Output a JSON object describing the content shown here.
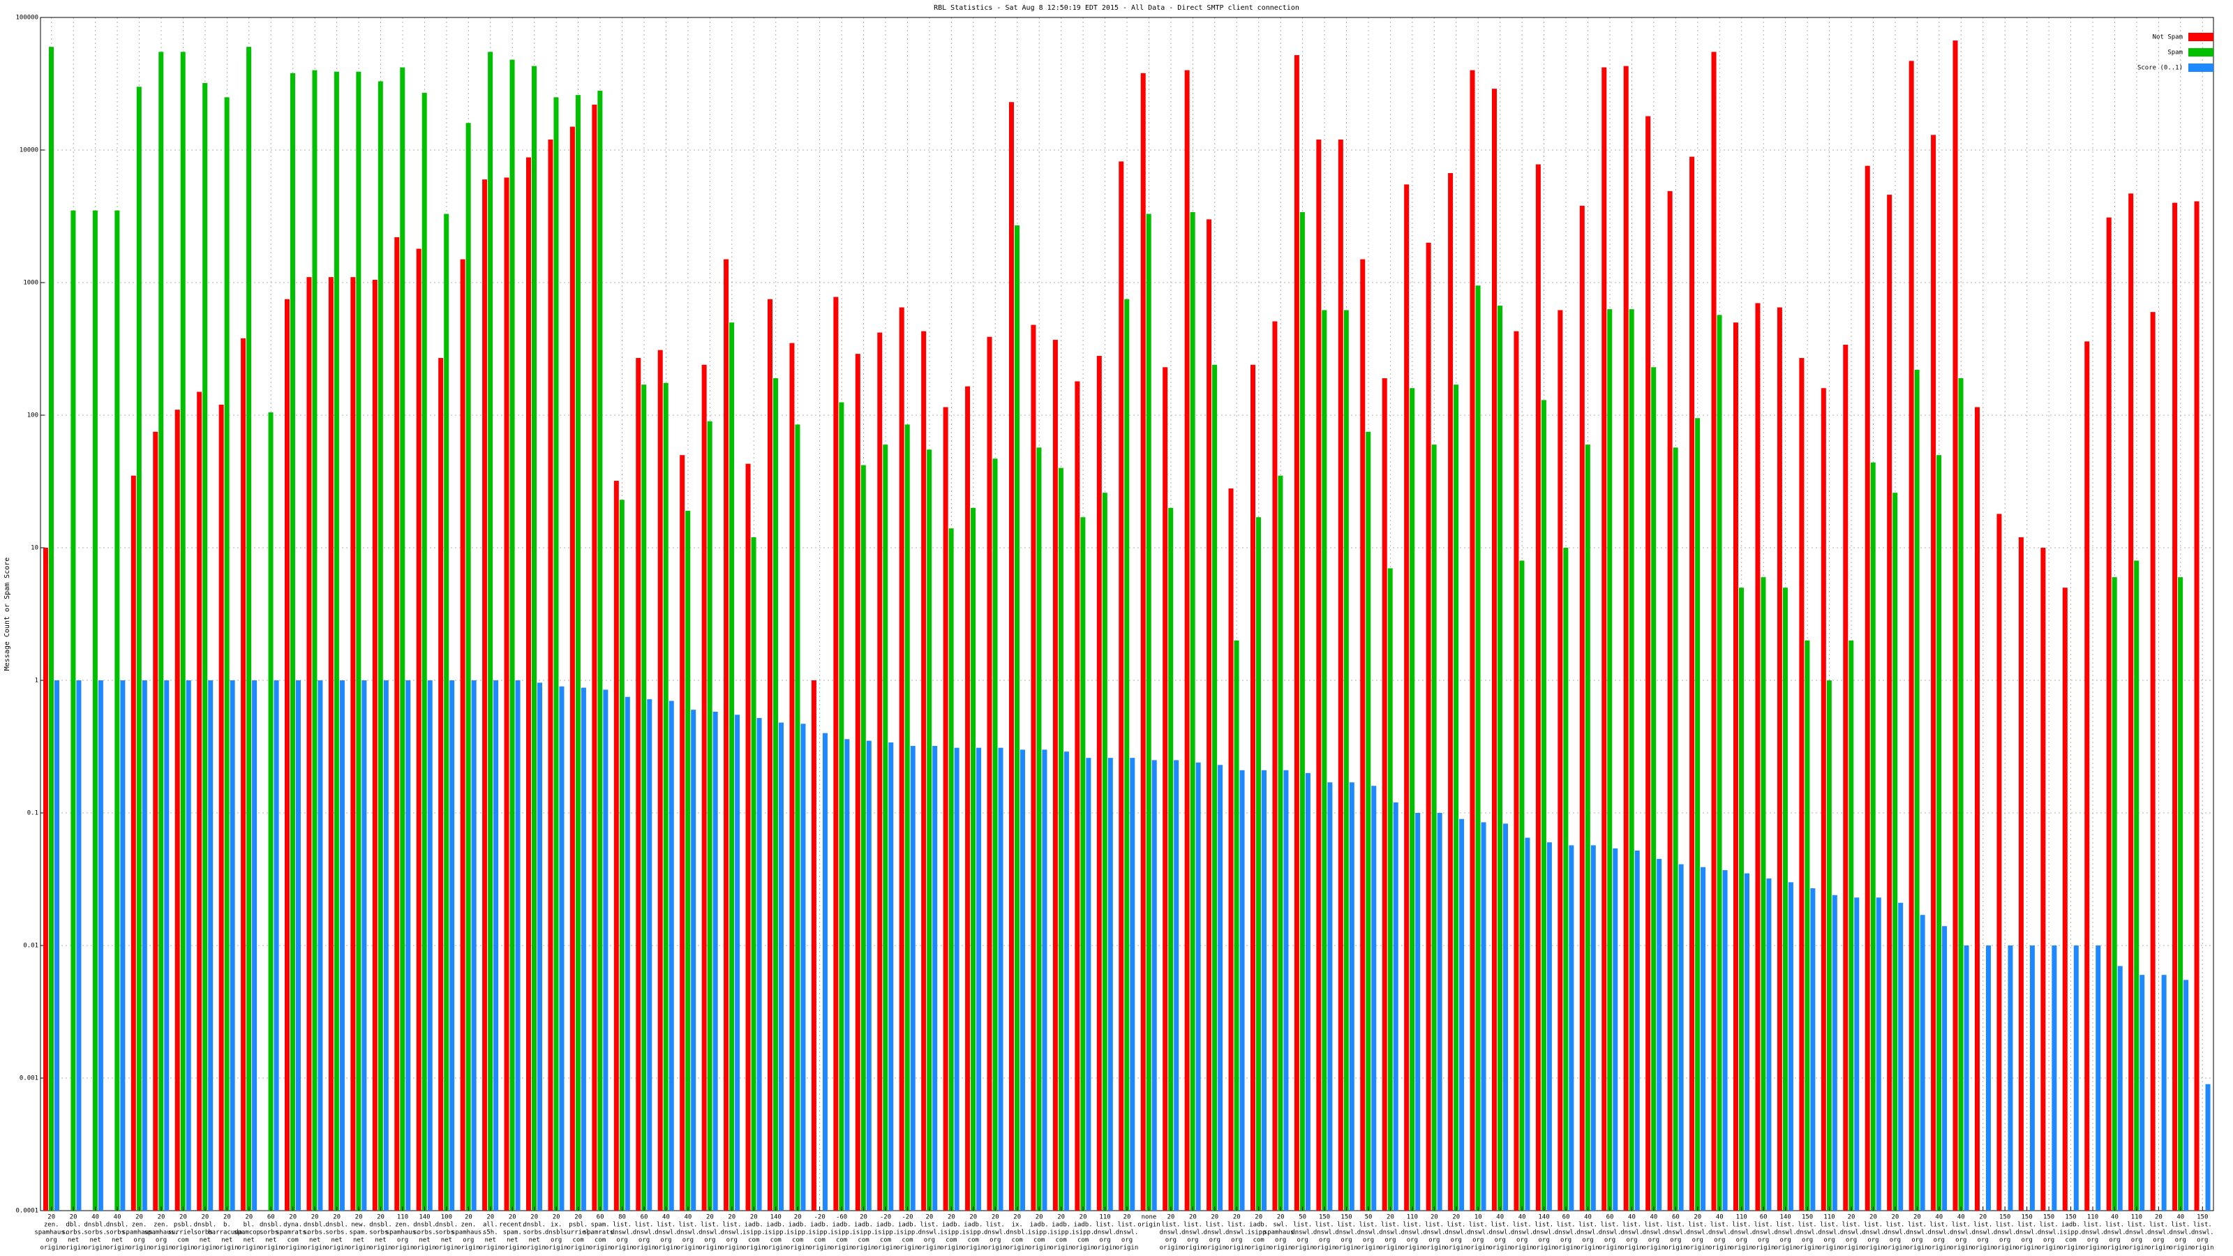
{
  "chart_data": {
    "type": "bar",
    "title": "RBL Statistics - Sat Aug  8 12:50:19 EDT 2015 - All Data - Direct SMTP client connection",
    "y_label": "Message Count or Spam Score",
    "log_scale": true,
    "grid": true,
    "legend": "top-right",
    "ylim": [
      0.0001,
      100000
    ],
    "yticks": [
      0.0001,
      0.001,
      0.01,
      0.1,
      1,
      10,
      100,
      1000,
      10000,
      100000
    ],
    "categories": [
      [
        "20",
        "zen.",
        "spamhaus.",
        "org",
        "origin"
      ],
      [
        "20",
        "dbl.",
        "sorbs.",
        "net",
        "origin"
      ],
      [
        "40",
        "dnsbl.",
        "sorbs.",
        "net",
        "origin"
      ],
      [
        "40",
        "dnsbl.",
        "sorbs.",
        "net",
        "origin"
      ],
      [
        "20",
        "zen.",
        "spamhaus.",
        "org",
        "origin"
      ],
      [
        "20",
        "zen.",
        "spamhaus.",
        "org",
        "origin"
      ],
      [
        "20",
        "psbl.",
        "surriel.",
        "com",
        "origin"
      ],
      [
        "20",
        "dnsbl.",
        "sorbs.",
        "net",
        "origin"
      ],
      [
        "20",
        "b.",
        "barracuda.",
        "net",
        "origin"
      ],
      [
        "20",
        "bl.",
        "spamcop.",
        "net",
        "origin"
      ],
      [
        "60",
        "dnsbl.",
        "sorbs.",
        "net",
        "origin"
      ],
      [
        "20",
        "dyna.",
        "spamrats.",
        "com",
        "origin"
      ],
      [
        "20",
        "dnsbl.",
        "sorbs.",
        "net",
        "origin"
      ],
      [
        "20",
        "dnsbl.",
        "sorbs.",
        "net",
        "origin"
      ],
      [
        "20",
        "new.",
        "spam.",
        "net",
        "origin"
      ],
      [
        "20",
        "dnsbl.",
        "sorbs.",
        "net",
        "origin"
      ],
      [
        "110",
        "zen.",
        "spamhaus.",
        "org",
        "origin"
      ],
      [
        "140",
        "dnsbl.",
        "sorbs.",
        "net",
        "origin"
      ],
      [
        "100",
        "dnsbl.",
        "sorbs.",
        "net",
        "origin"
      ],
      [
        "20",
        "zen.",
        "spamhaus.",
        "org",
        "origin"
      ],
      [
        "20",
        "all.",
        "s5h.",
        "net",
        "origin"
      ],
      [
        "20",
        "recent.",
        "spam.",
        "net",
        "origin"
      ],
      [
        "20",
        "dnsbl.",
        "sorbs.",
        "net",
        "origin"
      ],
      [
        "20",
        "ix.",
        "dnsbl.",
        "org",
        "origin"
      ],
      [
        "20",
        "psbl.",
        "surriel.",
        "com",
        "origin"
      ],
      [
        "60",
        "spam.",
        "spamrats.",
        "com",
        "origin"
      ],
      [
        "80",
        "list.",
        "dnswl.",
        "org",
        "origin"
      ],
      [
        "60",
        "list.",
        "dnswl.",
        "org",
        "origin"
      ],
      [
        "40",
        "list.",
        "dnswl.",
        "org",
        "origin"
      ],
      [
        "40",
        "list.",
        "dnswl.",
        "org",
        "origin"
      ],
      [
        "20",
        "list.",
        "dnswl.",
        "org",
        "origin"
      ],
      [
        "20",
        "list.",
        "dnswl.",
        "org",
        "origin"
      ],
      [
        "20",
        "iadb.",
        "isipp.",
        "com",
        "origin"
      ],
      [
        "140",
        "iadb.",
        "isipp.",
        "com",
        "origin"
      ],
      [
        "20",
        "iadb.",
        "isipp.",
        "com",
        "origin"
      ],
      [
        "-20",
        "iadb.",
        "isipp.",
        "com",
        "origin"
      ],
      [
        "-60",
        "iadb.",
        "isipp.",
        "com",
        "origin"
      ],
      [
        "20",
        "iadb.",
        "isipp.",
        "com",
        "origin"
      ],
      [
        "-20",
        "iadb.",
        "isipp.",
        "com",
        "origin"
      ],
      [
        "-20",
        "iadb.",
        "isipp.",
        "com",
        "origin"
      ],
      [
        "20",
        "list.",
        "dnswl.",
        "org",
        "origin"
      ],
      [
        "20",
        "iadb.",
        "isipp.",
        "com",
        "origin"
      ],
      [
        "20",
        "iadb.",
        "isipp.",
        "com",
        "origin"
      ],
      [
        "20",
        "list.",
        "dnswl.",
        "org",
        "origin"
      ],
      [
        "20",
        "ix.",
        "dnsbl.",
        "com",
        "origin"
      ],
      [
        "20",
        "iadb.",
        "isipp.",
        "com",
        "origin"
      ],
      [
        "20",
        "iadb.",
        "isipp.",
        "com",
        "origin"
      ],
      [
        "20",
        "iadb.",
        "isipp.",
        "com",
        "origin"
      ],
      [
        "110",
        "list.",
        "dnswl.",
        "org",
        "origin"
      ],
      [
        "20",
        "list.",
        "dnswl.",
        "org",
        "origin"
      ],
      [
        "none",
        "origin"
      ],
      [
        "20",
        "list.",
        "dnswl.",
        "org",
        "origin"
      ],
      [
        "20",
        "list.",
        "dnswl.",
        "org",
        "origin"
      ],
      [
        "20",
        "list.",
        "dnswl.",
        "org",
        "origin"
      ],
      [
        "20",
        "list.",
        "dnswl.",
        "org",
        "origin"
      ],
      [
        "20",
        "iadb.",
        "isipp.",
        "com",
        "origin"
      ],
      [
        "20",
        "swl.",
        "spamhaus.",
        "org",
        "origin"
      ],
      [
        "50",
        "list.",
        "dnswl.",
        "org",
        "origin"
      ],
      [
        "150",
        "list.",
        "dnswl.",
        "org",
        "origin"
      ],
      [
        "150",
        "list.",
        "dnswl.",
        "org",
        "origin"
      ],
      [
        "50",
        "list.",
        "dnswl.",
        "org",
        "origin"
      ],
      [
        "20",
        "list.",
        "dnswl.",
        "org",
        "origin"
      ],
      [
        "110",
        "list.",
        "dnswl.",
        "org",
        "origin"
      ],
      [
        "20",
        "list.",
        "dnswl.",
        "org",
        "origin"
      ],
      [
        "20",
        "list.",
        "dnswl.",
        "org",
        "origin"
      ],
      [
        "10",
        "list.",
        "dnswl.",
        "org",
        "origin"
      ],
      [
        "40",
        "list.",
        "dnswl.",
        "org",
        "origin"
      ],
      [
        "40",
        "list.",
        "dnswl.",
        "org",
        "origin"
      ],
      [
        "140",
        "list.",
        "dnswl.",
        "org",
        "origin"
      ],
      [
        "60",
        "list.",
        "dnswl.",
        "org",
        "origin"
      ],
      [
        "40",
        "list.",
        "dnswl.",
        "org",
        "origin"
      ],
      [
        "60",
        "list.",
        "dnswl.",
        "org",
        "origin"
      ],
      [
        "40",
        "list.",
        "dnswl.",
        "org",
        "origin"
      ],
      [
        "40",
        "list.",
        "dnswl.",
        "org",
        "origin"
      ],
      [
        "60",
        "list.",
        "dnswl.",
        "org",
        "origin"
      ],
      [
        "20",
        "list.",
        "dnswl.",
        "org",
        "origin"
      ],
      [
        "40",
        "list.",
        "dnswl.",
        "org",
        "origin"
      ],
      [
        "110",
        "list.",
        "dnswl.",
        "org",
        "origin"
      ],
      [
        "60",
        "list.",
        "dnswl.",
        "org",
        "origin"
      ],
      [
        "140",
        "list.",
        "dnswl.",
        "org",
        "origin"
      ],
      [
        "150",
        "list.",
        "dnswl.",
        "org",
        "origin"
      ],
      [
        "110",
        "list.",
        "dnswl.",
        "org",
        "origin"
      ],
      [
        "20",
        "list.",
        "dnswl.",
        "org",
        "origin"
      ],
      [
        "20",
        "list.",
        "dnswl.",
        "org",
        "origin"
      ],
      [
        "20",
        "list.",
        "dnswl.",
        "org",
        "origin"
      ],
      [
        "20",
        "list.",
        "dnswl.",
        "org",
        "origin"
      ],
      [
        "40",
        "list.",
        "dnswl.",
        "org",
        "origin"
      ],
      [
        "40",
        "list.",
        "dnswl.",
        "org",
        "origin"
      ],
      [
        "20",
        "list.",
        "dnswl.",
        "org",
        "origin"
      ],
      [
        "150",
        "list.",
        "dnswl.",
        "org",
        "origin"
      ],
      [
        "150",
        "list.",
        "dnswl.",
        "org",
        "origin"
      ],
      [
        "150",
        "list.",
        "dnswl.",
        "org",
        "origin"
      ],
      [
        "150",
        "iadb.",
        "isipp.",
        "com",
        "origin"
      ],
      [
        "110",
        "list.",
        "dnswl.",
        "org",
        "origin"
      ],
      [
        "40",
        "list.",
        "dnswl.",
        "org",
        "origin"
      ],
      [
        "110",
        "list.",
        "dnswl.",
        "org",
        "origin"
      ],
      [
        "20",
        "list.",
        "dnswl.",
        "org",
        "origin"
      ],
      [
        "40",
        "list.",
        "dnswl.",
        "org",
        "origin"
      ],
      [
        "150",
        "list.",
        "dnswl.",
        "org",
        "origin"
      ]
    ],
    "series": [
      {
        "name": "Not Spam",
        "color": "#ff0000",
        "values": [
          10,
          null,
          null,
          null,
          35,
          75,
          110,
          150,
          120,
          380,
          null,
          750,
          1100,
          1100,
          1100,
          1050,
          2200,
          1800,
          270,
          1500,
          6000,
          6200,
          8800,
          12000,
          15000,
          22000,
          32,
          270,
          310,
          50,
          240,
          1500,
          43,
          750,
          350,
          1,
          780,
          290,
          420,
          650,
          430,
          115,
          165,
          390,
          23000,
          480,
          370,
          180,
          280,
          8200,
          38000,
          230,
          40000,
          3000,
          28,
          240,
          510,
          52000,
          12000,
          12000,
          1500,
          190,
          5500,
          2000,
          6700,
          40000,
          29000,
          430,
          7800,
          620,
          3800,
          42000,
          43000,
          18000,
          4900,
          8900,
          55000,
          500,
          700,
          650,
          270,
          160,
          340,
          7600,
          4600,
          47000,
          13000,
          67000,
          115,
          18,
          12,
          10,
          5,
          360,
          3100,
          4700,
          600,
          4000,
          4100
        ]
      },
      {
        "name": "Spam",
        "color": "#00c000",
        "values": [
          60000,
          3500,
          3500,
          3500,
          30000,
          55000,
          55000,
          32000,
          25000,
          60000,
          105,
          38000,
          40000,
          39000,
          39000,
          33000,
          42000,
          27000,
          3300,
          16000,
          55000,
          48000,
          43000,
          25000,
          26000,
          28000,
          23,
          170,
          175,
          19,
          90,
          500,
          12,
          190,
          85,
          null,
          125,
          42,
          60,
          85,
          55,
          14,
          20,
          47,
          2700,
          57,
          40,
          17,
          26,
          750,
          3300,
          20,
          3400,
          240,
          2,
          17,
          35,
          3400,
          620,
          620,
          75,
          7,
          160,
          60,
          170,
          950,
          670,
          8,
          130,
          10,
          60,
          630,
          630,
          230,
          57,
          95,
          570,
          5,
          6,
          5,
          2,
          1,
          2,
          44,
          26,
          220,
          50,
          190,
          null,
          null,
          null,
          null,
          null,
          null,
          6,
          8,
          null,
          6,
          null
        ]
      },
      {
        "name": "Score (0..1)",
        "color": "#1e88ff",
        "values": [
          1,
          1,
          1,
          1,
          1,
          1,
          1,
          1,
          1,
          1,
          1,
          1,
          1,
          1,
          1,
          1,
          1,
          1,
          1,
          1,
          1,
          1,
          0.96,
          0.9,
          0.88,
          0.85,
          0.75,
          0.72,
          0.7,
          0.6,
          0.58,
          0.55,
          0.52,
          0.48,
          0.47,
          0.4,
          0.36,
          0.35,
          0.34,
          0.32,
          0.32,
          0.31,
          0.31,
          0.31,
          0.3,
          0.3,
          0.29,
          0.26,
          0.26,
          0.26,
          0.25,
          0.25,
          0.24,
          0.23,
          0.21,
          0.21,
          0.21,
          0.2,
          0.17,
          0.17,
          0.16,
          0.12,
          0.1,
          0.1,
          0.09,
          0.085,
          0.083,
          0.065,
          0.06,
          0.057,
          0.057,
          0.054,
          0.052,
          0.045,
          0.041,
          0.039,
          0.037,
          0.035,
          0.032,
          0.03,
          0.027,
          0.024,
          0.023,
          0.023,
          0.021,
          0.017,
          0.014,
          0.01,
          0.01,
          0.01,
          0.01,
          0.01,
          0.01,
          0.01,
          0.007,
          0.006,
          0.006,
          0.0055,
          0.0009
        ]
      }
    ]
  }
}
